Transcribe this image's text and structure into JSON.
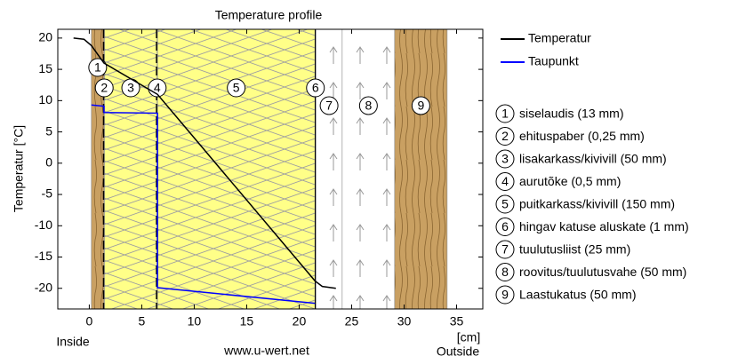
{
  "chart_data": {
    "type": "line",
    "title": "Temperature profile",
    "y_label": "Temperatur [°C]",
    "x_unit": "[cm]",
    "inside_label": "Inside",
    "outside_label": "Outside",
    "source": "www.u-wert.net",
    "xlim": [
      -3,
      37.5
    ],
    "ylim": [
      -23.3,
      21.4
    ],
    "xticks": [
      0,
      5,
      10,
      15,
      20,
      25,
      30,
      35
    ],
    "yticks": [
      -20,
      -15,
      -10,
      -5,
      0,
      5,
      10,
      15,
      20
    ],
    "layers": [
      {
        "number": "1",
        "label": "siselaudis (13 mm)",
        "x_from": 0.2,
        "x_to": 1.4,
        "material": "wood"
      },
      {
        "number": "2",
        "label": "ehituspaber (0,25 mm)",
        "x_from": 1.4,
        "x_to": 1.45,
        "material": "paper"
      },
      {
        "number": "3",
        "label": "lisakarkass/kivivill (50 mm)",
        "x_from": 1.45,
        "x_to": 6.45,
        "material": "insulation"
      },
      {
        "number": "4",
        "label": "aurutõke (0,5 mm)",
        "x_from": 6.45,
        "x_to": 6.5,
        "material": "paper"
      },
      {
        "number": "5",
        "label": "puitkarkass/kivivill (150 mm)",
        "x_from": 6.5,
        "x_to": 21.5,
        "material": "insulation"
      },
      {
        "number": "6",
        "label": "hingav katuse aluskate (1 mm)",
        "x_from": 21.5,
        "x_to": 21.6,
        "material": "membrane"
      },
      {
        "number": "7",
        "label": "tuulutusliist (25 mm)",
        "x_from": 21.6,
        "x_to": 24.1,
        "material": "air"
      },
      {
        "number": "8",
        "label": "roovitus/tuulutusvahe (50 mm)",
        "x_from": 24.1,
        "x_to": 29.1,
        "material": "air"
      },
      {
        "number": "9",
        "label": "Laastukatus (50 mm)",
        "x_from": 29.1,
        "x_to": 34.1,
        "material": "wood"
      }
    ],
    "series": [
      {
        "name": "Temperatur",
        "color": "#000000",
        "x": [
          -1.5,
          -0.5,
          0.2,
          1.4,
          6.5,
          21.5,
          22.2,
          23.5
        ],
        "values": [
          20,
          19.8,
          18.8,
          16,
          11,
          -18.8,
          -19.7,
          -20
        ]
      },
      {
        "name": "Taupunkt",
        "color": "#0000ff",
        "x": [
          0.2,
          1.4,
          1.4,
          6.5,
          6.5,
          21.5
        ],
        "values": [
          9.3,
          9.1,
          8.1,
          8,
          -19.9,
          -22.4
        ]
      }
    ]
  }
}
